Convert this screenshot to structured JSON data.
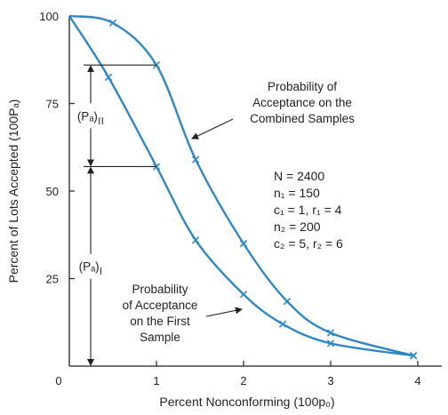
{
  "chart_data": {
    "type": "line",
    "title": "",
    "xlabel": "Percent Nonconforming (100p₀)",
    "ylabel": "Percent of Lots Accepted (100Pₐ)",
    "xlim": [
      0,
      4.25
    ],
    "ylim": [
      0,
      100
    ],
    "x_ticks": [
      1,
      2,
      3,
      4
    ],
    "y_ticks": [
      0,
      25,
      50,
      75,
      100
    ],
    "grid": false,
    "series": [
      {
        "key": "combined",
        "color": "#2f88c2",
        "points": [
          [
            0,
            100
          ],
          [
            0.5,
            98
          ],
          [
            1,
            86
          ],
          [
            1.45,
            59
          ],
          [
            2,
            35
          ],
          [
            2.5,
            18.5
          ],
          [
            3,
            9.5
          ],
          [
            3.95,
            3
          ]
        ],
        "markers": [
          [
            0.5,
            98
          ],
          [
            1,
            86
          ],
          [
            1.45,
            59
          ],
          [
            2,
            35
          ],
          [
            2.5,
            18.5
          ],
          [
            3,
            9.5
          ],
          [
            3.95,
            3
          ]
        ]
      },
      {
        "key": "first",
        "color": "#2f88c2",
        "points": [
          [
            0,
            100
          ],
          [
            0.45,
            82.5
          ],
          [
            1,
            57
          ],
          [
            1.45,
            36
          ],
          [
            2,
            20.5
          ],
          [
            2.45,
            12
          ],
          [
            3,
            6.5
          ],
          [
            3.95,
            3
          ]
        ],
        "markers": [
          [
            0.45,
            82.5
          ],
          [
            1,
            57
          ],
          [
            1.45,
            36
          ],
          [
            2,
            20.5
          ],
          [
            2.45,
            12
          ],
          [
            3,
            6.5
          ],
          [
            3.95,
            3
          ]
        ]
      }
    ],
    "annotations": {
      "combined_label": [
        "Probability of",
        "Acceptance on the",
        "Combined Samples"
      ],
      "first_label": [
        "Probability",
        "of Acceptance",
        "on the First",
        "Sample"
      ],
      "pa_II": {
        "text": "(Pₐ)",
        "subscript": "II",
        "from": 57,
        "to": 86
      },
      "pa_I": {
        "text": "(Pₐ)",
        "subscript": "I",
        "from": 0,
        "to": 57
      },
      "parameters": [
        "N = 2400",
        "n₁ = 150",
        "c₁ = 1, r₁ = 4",
        "n₂ = 200",
        "c₂ = 5, r₂ = 6"
      ]
    }
  }
}
